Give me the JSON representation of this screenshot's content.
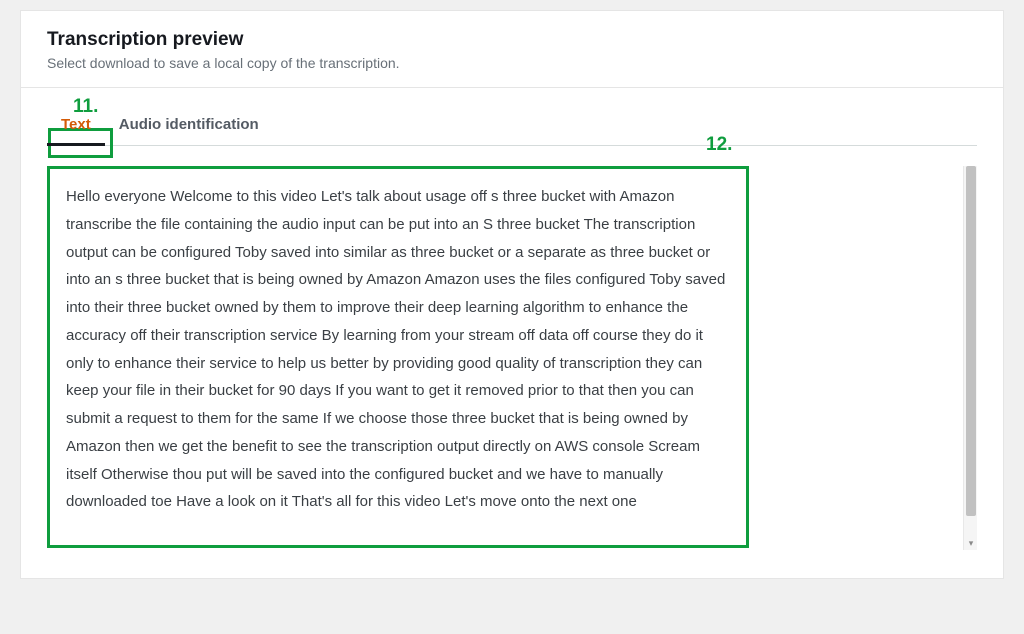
{
  "header": {
    "title": "Transcription preview",
    "subtitle": "Select download to save a local copy of the transcription."
  },
  "tabs": {
    "text_label": "Text",
    "audio_label": "Audio identification"
  },
  "annotations": {
    "n11": "11.",
    "n12": "12."
  },
  "transcription": {
    "body": "Hello everyone Welcome to this video Let's talk about usage off s three bucket with Amazon transcribe the file containing the audio input can be put into an S three bucket The transcription output can be configured Toby saved into similar as three bucket or a separate as three bucket or into an s three bucket that is being owned by Amazon Amazon uses the files configured Toby saved into their three bucket owned by them to improve their deep learning algorithm to enhance the accuracy off their transcription service By learning from your stream off data off course they do it only to enhance their service to help us better by providing good quality of transcription they can keep your file in their bucket for 90 days If you want to get it removed prior to that then you can submit a request to them for the same If we choose those three bucket that is being owned by Amazon then we get the benefit to see the transcription output directly on AWS console Scream itself Otherwise thou put will be saved into the configured bucket and we have to manually downloaded toe Have a look on it That's all for this video Let's move onto the next one"
  },
  "colors": {
    "highlight_green": "#0f9d3e",
    "active_tab_text": "#d45b07",
    "panel_bg": "#ffffff",
    "page_bg": "#f0f0f0",
    "text_primary": "#16191f",
    "text_secondary": "#687078"
  }
}
